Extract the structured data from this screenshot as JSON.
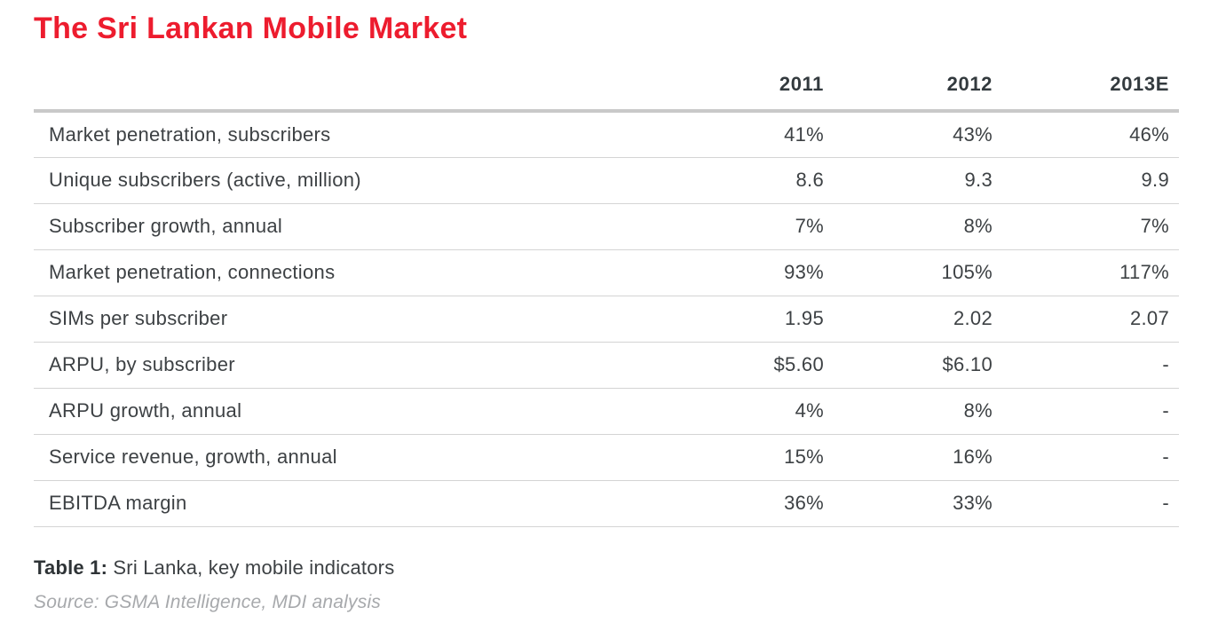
{
  "page": {
    "title": "The Sri Lankan Mobile Market",
    "caption_label": "Table 1:",
    "caption_text": "Sri Lanka, key mobile indicators",
    "source": "Source: GSMA Intelligence, MDI analysis"
  },
  "colors": {
    "title_red": "#ED1C2E",
    "body_text": "#3d4144",
    "header_text": "#333a3e",
    "thick_rule": "#c9c9c9",
    "thin_rule": "#d4d4d4",
    "source_gray": "#a7a9ac"
  },
  "chart_data": {
    "type": "table",
    "title": "The Sri Lankan Mobile Market",
    "columns": [
      "2011",
      "2012",
      "2013E"
    ],
    "rows": [
      {
        "label": "Market penetration, subscribers",
        "values": [
          "41%",
          "43%",
          "46%"
        ]
      },
      {
        "label": "Unique subscribers (active, million)",
        "values": [
          "8.6",
          "9.3",
          "9.9"
        ]
      },
      {
        "label": "Subscriber growth, annual",
        "values": [
          "7%",
          "8%",
          "7%"
        ]
      },
      {
        "label": "Market penetration, connections",
        "values": [
          "93%",
          "105%",
          "117%"
        ]
      },
      {
        "label": "SIMs per subscriber",
        "values": [
          "1.95",
          "2.02",
          "2.07"
        ]
      },
      {
        "label": "ARPU, by subscriber",
        "values": [
          "$5.60",
          "$6.10",
          "-"
        ]
      },
      {
        "label": "ARPU growth, annual",
        "values": [
          "4%",
          "8%",
          "-"
        ]
      },
      {
        "label": "Service revenue, growth, annual",
        "values": [
          "15%",
          "16%",
          "-"
        ]
      },
      {
        "label": "EBITDA margin",
        "values": [
          "36%",
          "33%",
          "-"
        ]
      }
    ]
  }
}
